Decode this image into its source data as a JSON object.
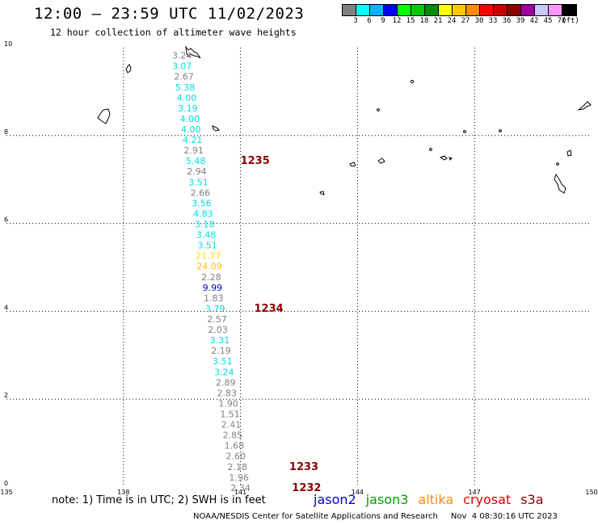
{
  "title": "12:00 – 23:59 UTC 11/02/2023",
  "subtitle": "12 hour collection of altimeter wave heights",
  "legend": {
    "colors": [
      "#808080",
      "#00ffff",
      "#00b4ff",
      "#0000ff",
      "#00ff00",
      "#00c800",
      "#008c00",
      "#ffff00",
      "#ffc800",
      "#ff8c00",
      "#ff0000",
      "#c80000",
      "#8c0000",
      "#a000a0",
      "#c8c8ff",
      "#ff96ff",
      "#000000"
    ],
    "labels": [
      "3",
      "6",
      "9",
      "12",
      "15",
      "18",
      "21",
      "24",
      "27",
      "30",
      "33",
      "36",
      "39",
      "42",
      "45",
      "70"
    ],
    "unit": "(ft)"
  },
  "map": {
    "lon_range": [
      135,
      150
    ],
    "lat_range": [
      0,
      10
    ],
    "lon_ticks": [
      "135",
      "138",
      "141",
      "144",
      "147",
      "150"
    ],
    "lat_ticks": [
      "0",
      "2",
      "4",
      "6",
      "8",
      "10"
    ],
    "grid": "dotted"
  },
  "observations": [
    {
      "lon": 139.5,
      "lat": 9.75,
      "value": "3.24",
      "color": "#808080"
    },
    {
      "lon": 139.5,
      "lat": 9.51,
      "value": "3.07",
      "color": "#00e0e0"
    },
    {
      "lon": 139.55,
      "lat": 9.27,
      "value": "2.67",
      "color": "#808080"
    },
    {
      "lon": 139.58,
      "lat": 9.03,
      "value": "5.38",
      "color": "#00e0e0"
    },
    {
      "lon": 139.62,
      "lat": 8.79,
      "value": "4.00",
      "color": "#00e0e0"
    },
    {
      "lon": 139.65,
      "lat": 8.55,
      "value": "3.19",
      "color": "#00e0e0"
    },
    {
      "lon": 139.7,
      "lat": 8.31,
      "value": "4.00",
      "color": "#00e0e0"
    },
    {
      "lon": 139.73,
      "lat": 8.07,
      "value": "4.00",
      "color": "#00e0e0"
    },
    {
      "lon": 139.77,
      "lat": 7.83,
      "value": "4.21",
      "color": "#00e0e0"
    },
    {
      "lon": 139.8,
      "lat": 7.59,
      "value": "2.91",
      "color": "#808080"
    },
    {
      "lon": 139.85,
      "lat": 7.35,
      "value": "5.48",
      "color": "#00e0e0"
    },
    {
      "lon": 139.88,
      "lat": 7.11,
      "value": "2.94",
      "color": "#808080"
    },
    {
      "lon": 139.92,
      "lat": 6.87,
      "value": "3.51",
      "color": "#00e0e0"
    },
    {
      "lon": 139.97,
      "lat": 6.63,
      "value": "2.66",
      "color": "#808080"
    },
    {
      "lon": 140.0,
      "lat": 6.39,
      "value": "3.56",
      "color": "#00e0e0"
    },
    {
      "lon": 140.04,
      "lat": 6.15,
      "value": "4.83",
      "color": "#00e0e0"
    },
    {
      "lon": 140.08,
      "lat": 5.91,
      "value": "3.18",
      "color": "#00e0e0"
    },
    {
      "lon": 140.12,
      "lat": 5.67,
      "value": "3.48",
      "color": "#00e0e0"
    },
    {
      "lon": 140.15,
      "lat": 5.43,
      "value": "3.51",
      "color": "#00e0e0"
    },
    {
      "lon": 140.18,
      "lat": 5.19,
      "value": "21.77",
      "color": "#ffe000"
    },
    {
      "lon": 140.2,
      "lat": 4.95,
      "value": "24.09",
      "color": "#ffc000"
    },
    {
      "lon": 140.25,
      "lat": 4.71,
      "value": "2.28",
      "color": "#808080"
    },
    {
      "lon": 140.28,
      "lat": 4.47,
      "value": "9.99",
      "color": "#0000c8"
    },
    {
      "lon": 140.31,
      "lat": 4.23,
      "value": "1.83",
      "color": "#808080"
    },
    {
      "lon": 140.35,
      "lat": 3.99,
      "value": "3.79",
      "color": "#00e0e0"
    },
    {
      "lon": 140.4,
      "lat": 3.75,
      "value": "2.57",
      "color": "#808080"
    },
    {
      "lon": 140.42,
      "lat": 3.51,
      "value": "2.03",
      "color": "#808080"
    },
    {
      "lon": 140.47,
      "lat": 3.27,
      "value": "3.31",
      "color": "#00e0e0"
    },
    {
      "lon": 140.5,
      "lat": 3.03,
      "value": "2.19",
      "color": "#808080"
    },
    {
      "lon": 140.54,
      "lat": 2.79,
      "value": "3.51",
      "color": "#00e0e0"
    },
    {
      "lon": 140.58,
      "lat": 2.55,
      "value": "3.24",
      "color": "#00e0e0"
    },
    {
      "lon": 140.62,
      "lat": 2.31,
      "value": "2.89",
      "color": "#808080"
    },
    {
      "lon": 140.65,
      "lat": 2.07,
      "value": "2.83",
      "color": "#808080"
    },
    {
      "lon": 140.69,
      "lat": 1.83,
      "value": "1.90",
      "color": "#808080"
    },
    {
      "lon": 140.73,
      "lat": 1.59,
      "value": "1.51",
      "color": "#808080"
    },
    {
      "lon": 140.76,
      "lat": 1.35,
      "value": "2.41",
      "color": "#808080"
    },
    {
      "lon": 140.8,
      "lat": 1.11,
      "value": "2.85",
      "color": "#808080"
    },
    {
      "lon": 140.84,
      "lat": 0.87,
      "value": "1.68",
      "color": "#808080"
    },
    {
      "lon": 140.88,
      "lat": 0.63,
      "value": "2.60",
      "color": "#808080"
    },
    {
      "lon": 140.92,
      "lat": 0.39,
      "value": "2.18",
      "color": "#808080"
    },
    {
      "lon": 140.96,
      "lat": 0.15,
      "value": "1.96",
      "color": "#808080"
    },
    {
      "lon": 141.0,
      "lat": -0.09,
      "value": "2.34",
      "color": "#808080"
    }
  ],
  "pass_labels": [
    {
      "lon": 141.0,
      "lat": 7.35,
      "text": "1235",
      "color": "#8c0000"
    },
    {
      "lon": 141.35,
      "lat": 3.99,
      "text": "1234",
      "color": "#8c0000"
    },
    {
      "lon": 142.25,
      "lat": 0.39,
      "text": "1233",
      "color": "#8c0000"
    },
    {
      "lon": 142.32,
      "lat": -0.09,
      "text": "1232",
      "color": "#8c0000"
    }
  ],
  "note": "note: 1) Time is in UTC; 2) SWH is in feet",
  "satellites": [
    {
      "name": "jason2",
      "color": "#0000e0"
    },
    {
      "name": "jason3",
      "color": "#00a000"
    },
    {
      "name": "altika",
      "color": "#ff8c00"
    },
    {
      "name": "cryosat",
      "color": "#e00000"
    },
    {
      "name": "s3a",
      "color": "#8c0000"
    }
  ],
  "footer": {
    "credit": "NOAA/NESDIS Center for Satellite Applications and Research",
    "timestamp": "Nov  4 08:30:16 UTC 2023"
  }
}
